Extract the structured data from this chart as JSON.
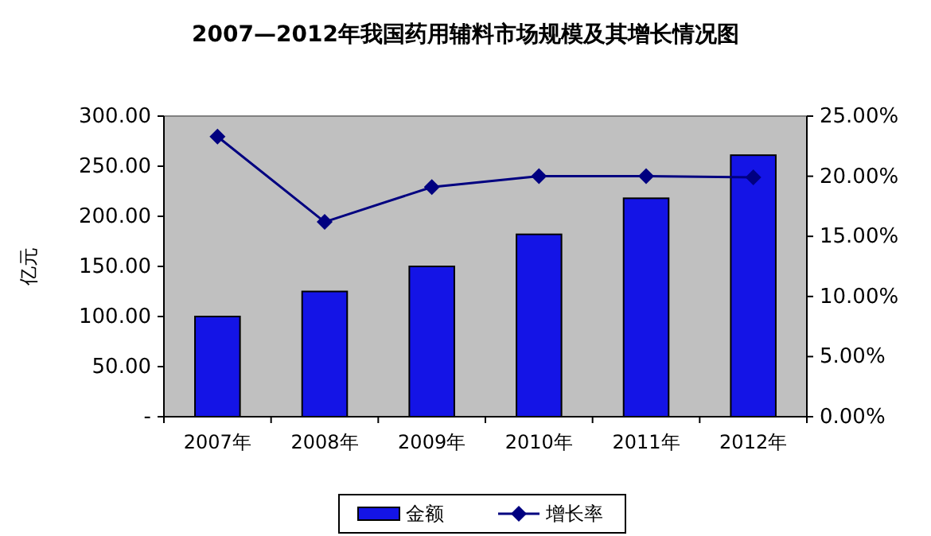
{
  "chart_data": {
    "type": "bar",
    "title": "2007—2012年我国药用辅料市场规模及其增长情况图",
    "ylabel": "亿元",
    "categories": [
      "2007年",
      "2008年",
      "2009年",
      "2010年",
      "2011年",
      "2012年"
    ],
    "series": [
      {
        "name": "金额",
        "color": "#1414e6",
        "values": [
          100,
          125,
          150,
          182,
          218,
          261
        ]
      },
      {
        "name": "增长率",
        "type": "line",
        "axis": "y2",
        "color": "#000080",
        "marker": "diamond",
        "values": [
          23.3,
          16.2,
          19.1,
          20.0,
          20.0,
          19.9
        ]
      }
    ],
    "ylim": [
      0,
      300
    ],
    "yticks": [
      {
        "value": 0,
        "label": "-"
      },
      {
        "value": 50,
        "label": "50.00"
      },
      {
        "value": 100,
        "label": "100.00"
      },
      {
        "value": 150,
        "label": "150.00"
      },
      {
        "value": 200,
        "label": "200.00"
      },
      {
        "value": 250,
        "label": "250.00"
      },
      {
        "value": 300,
        "label": "300.00"
      }
    ],
    "y2lim": [
      0,
      25
    ],
    "y2ticks": [
      {
        "value": 0,
        "label": "0.00%"
      },
      {
        "value": 5,
        "label": "5.00%"
      },
      {
        "value": 10,
        "label": "10.00%"
      },
      {
        "value": 15,
        "label": "15.00%"
      },
      {
        "value": 20,
        "label": "20.00%"
      },
      {
        "value": 25,
        "label": "25.00%"
      }
    ],
    "legend": "bottom",
    "grid": false
  }
}
